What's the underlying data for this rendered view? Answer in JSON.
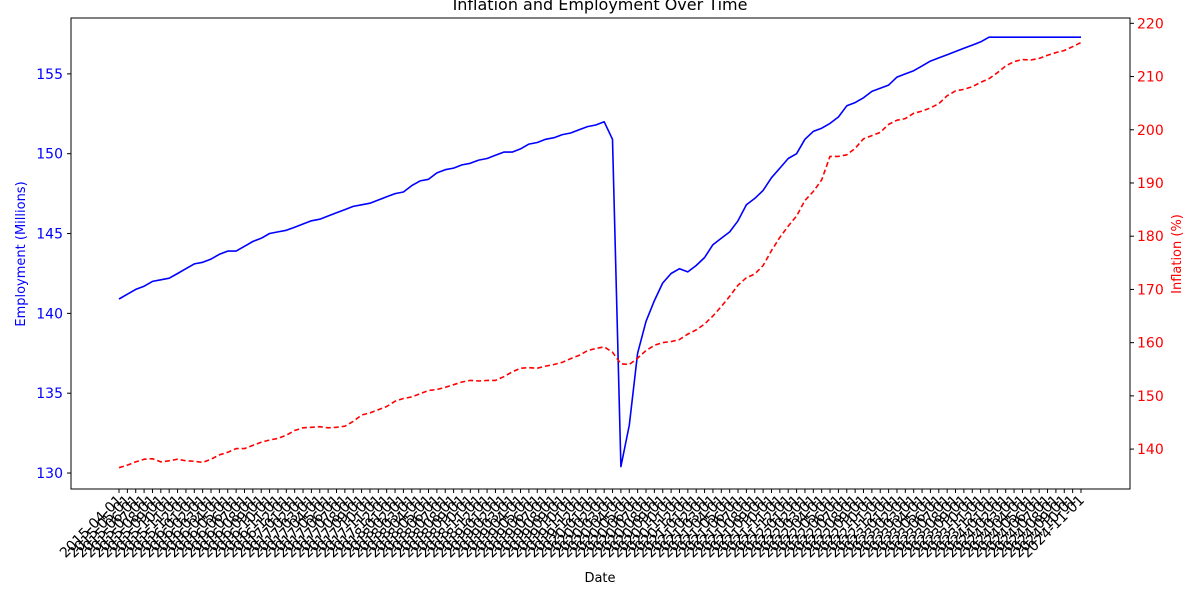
{
  "chart_data": {
    "type": "line",
    "title": "Inflation and Employment Over Time",
    "xlabel": "Date",
    "ylabel_left": "Employment (Millions)",
    "ylabel_right": "Inflation (%)",
    "ylim_left": [
      129,
      158.5
    ],
    "ylim_right": [
      132.5,
      221
    ],
    "yticks_left": [
      130,
      135,
      140,
      145,
      150,
      155
    ],
    "yticks_right": [
      140,
      150,
      160,
      170,
      180,
      190,
      200,
      210,
      220
    ],
    "colors": {
      "left_axis": "#0000ff",
      "right_axis": "#ff0000",
      "axes": "#000000",
      "text": "#000000"
    },
    "grid": false,
    "legend": "none",
    "x_categories": [
      "2015-04-01",
      "2015-05-01",
      "2015-06-01",
      "2015-07-01",
      "2015-08-01",
      "2015-09-01",
      "2015-10-01",
      "2015-11-01",
      "2015-12-01",
      "2016-01-01",
      "2016-02-01",
      "2016-03-01",
      "2016-04-01",
      "2016-05-01",
      "2016-06-01",
      "2016-07-01",
      "2016-08-01",
      "2016-09-01",
      "2016-10-01",
      "2016-11-01",
      "2016-12-01",
      "2017-01-01",
      "2017-02-01",
      "2017-03-01",
      "2017-04-01",
      "2017-05-01",
      "2017-06-01",
      "2017-07-01",
      "2017-08-01",
      "2017-09-01",
      "2017-10-01",
      "2017-11-01",
      "2017-12-01",
      "2018-01-01",
      "2018-02-01",
      "2018-03-01",
      "2018-04-01",
      "2018-05-01",
      "2018-06-01",
      "2018-07-01",
      "2018-08-01",
      "2018-09-01",
      "2018-10-01",
      "2018-11-01",
      "2018-12-01",
      "2019-01-01",
      "2019-02-01",
      "2019-03-01",
      "2019-04-01",
      "2019-05-01",
      "2019-06-01",
      "2019-07-01",
      "2019-08-01",
      "2019-09-01",
      "2019-10-01",
      "2019-11-01",
      "2019-12-01",
      "2020-01-01",
      "2020-02-01",
      "2020-03-01",
      "2020-04-01",
      "2020-05-01",
      "2020-06-01",
      "2020-07-01",
      "2020-08-01",
      "2020-09-01",
      "2020-10-01",
      "2020-11-01",
      "2020-12-01",
      "2021-01-01",
      "2021-02-01",
      "2021-03-01",
      "2021-04-01",
      "2021-05-01",
      "2021-06-01",
      "2021-07-01",
      "2021-08-01",
      "2021-09-01",
      "2021-10-01",
      "2021-11-01",
      "2021-12-01",
      "2022-01-01",
      "2022-02-01",
      "2022-03-01",
      "2022-04-01",
      "2022-05-01",
      "2022-06-01",
      "2022-07-01",
      "2022-08-01",
      "2022-09-01",
      "2022-10-01",
      "2022-11-01",
      "2022-12-01",
      "2023-01-01",
      "2023-02-01",
      "2023-03-01",
      "2023-04-01",
      "2023-05-01",
      "2023-06-01",
      "2023-07-01",
      "2023-08-01",
      "2023-09-01",
      "2023-10-01",
      "2023-11-01",
      "2023-12-01",
      "2024-01-01",
      "2024-02-01",
      "2024-03-01",
      "2024-04-01",
      "2024-05-01",
      "2024-06-01",
      "2024-07-01",
      "2024-08-01",
      "2024-09-01",
      "2024-10-01",
      "2024-11-01"
    ],
    "series": [
      {
        "name": "Employment (Millions)",
        "axis": "left",
        "color": "#0000ff",
        "style": "solid",
        "values": [
          140.9,
          141.2,
          141.5,
          141.7,
          142.0,
          142.1,
          142.2,
          142.5,
          142.8,
          143.1,
          143.2,
          143.4,
          143.7,
          143.9,
          143.9,
          144.2,
          144.5,
          144.7,
          145.0,
          145.1,
          145.2,
          145.4,
          145.6,
          145.8,
          145.9,
          146.1,
          146.3,
          146.5,
          146.7,
          146.8,
          146.9,
          147.1,
          147.3,
          147.5,
          147.6,
          148.0,
          148.3,
          148.4,
          148.8,
          149.0,
          149.1,
          149.3,
          149.4,
          149.6,
          149.7,
          149.9,
          150.1,
          150.1,
          150.3,
          150.6,
          150.7,
          150.9,
          151.0,
          151.2,
          151.3,
          151.5,
          151.7,
          151.8,
          152.0,
          150.9,
          130.4,
          133.0,
          137.5,
          139.5,
          140.8,
          141.9,
          142.5,
          142.8,
          142.6,
          143.0,
          143.5,
          144.3,
          144.7,
          145.1,
          145.8,
          146.8,
          147.2,
          147.7,
          148.5,
          149.1,
          149.7,
          150.0,
          150.9,
          151.4,
          151.6,
          151.9,
          152.3,
          153.0,
          153.2,
          153.5,
          153.9,
          154.1,
          154.3,
          154.8,
          155.0,
          155.2,
          155.5,
          155.8,
          156.0,
          156.2,
          156.4,
          156.6,
          156.8,
          157.0,
          157.3,
          157.3,
          157.3,
          157.3,
          157.3,
          157.3,
          157.3,
          157.3,
          157.3,
          157.3,
          157.3,
          157.3
        ]
      },
      {
        "name": "Inflation (%)",
        "axis": "right",
        "color": "#ff0000",
        "style": "dashed",
        "values": [
          136.5,
          137.0,
          137.6,
          138.1,
          138.2,
          137.6,
          137.8,
          138.1,
          137.8,
          137.7,
          137.5,
          138.1,
          138.9,
          139.4,
          140.1,
          140.1,
          140.7,
          141.3,
          141.7,
          142.0,
          142.6,
          143.5,
          144.0,
          144.1,
          144.2,
          144.0,
          144.1,
          144.3,
          145.2,
          146.4,
          146.8,
          147.4,
          148.0,
          149.0,
          149.5,
          149.8,
          150.4,
          151.0,
          151.2,
          151.6,
          152.1,
          152.6,
          152.9,
          152.8,
          152.9,
          152.9,
          153.6,
          154.5,
          155.2,
          155.3,
          155.2,
          155.6,
          155.9,
          156.3,
          157.0,
          157.6,
          158.5,
          158.9,
          159.2,
          158.2,
          156.0,
          155.9,
          157.1,
          158.5,
          159.5,
          160.0,
          160.2,
          160.6,
          161.6,
          162.4,
          163.5,
          165.0,
          166.8,
          168.7,
          170.8,
          172.2,
          172.9,
          174.5,
          177.3,
          179.8,
          181.9,
          183.8,
          186.7,
          188.4,
          190.6,
          195.0,
          195.0,
          195.3,
          196.5,
          198.3,
          198.9,
          199.5,
          201.0,
          201.8,
          202.1,
          203.1,
          203.5,
          204.1,
          204.9,
          206.4,
          207.3,
          207.6,
          208.1,
          208.9,
          209.6,
          210.7,
          212.0,
          212.8,
          213.2,
          213.1,
          213.4,
          214.0,
          214.5,
          214.9,
          215.6,
          216.4
        ]
      }
    ]
  }
}
